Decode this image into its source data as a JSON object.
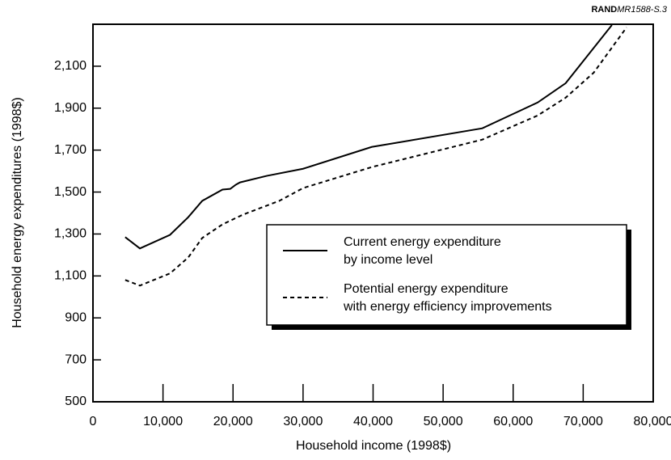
{
  "chart_data": {
    "type": "line",
    "source": "RAND",
    "report": "MR1588-S.3",
    "xlabel": "Household income (1998$)",
    "ylabel": "Household energy expenditures (1998$)",
    "xlim": [
      0,
      80000
    ],
    "ylim": [
      500,
      2300
    ],
    "xticks": [
      0,
      {
        "value": 10000,
        "label": "10,000"
      },
      {
        "value": 20000,
        "label": "20,000"
      },
      {
        "value": 30000,
        "label": "30,000"
      },
      {
        "value": 40000,
        "label": "40,000"
      },
      {
        "value": 50000,
        "label": "50,000"
      },
      {
        "value": 60000,
        "label": "60,000"
      },
      {
        "value": 70000,
        "label": "70,000"
      },
      {
        "value": 80000,
        "label": "80,000"
      }
    ],
    "yticks": [
      500,
      700,
      900,
      {
        "value": 1100,
        "label": "1,100"
      },
      {
        "value": 1300,
        "label": "1,300"
      },
      {
        "value": 1500,
        "label": "1,500"
      },
      {
        "value": 1700,
        "label": "1,700"
      },
      {
        "value": 1900,
        "label": "1,900"
      },
      {
        "value": 2100,
        "label": "2,100"
      }
    ],
    "series": [
      {
        "name": [
          "Current energy expenditure",
          "by income level"
        ],
        "color": "#000000",
        "dash": false,
        "x": [
          4600,
          6700,
          11000,
          13600,
          15600,
          18500,
          19600,
          20400,
          21000,
          24800,
          30000,
          39800,
          55600,
          63500,
          67500,
          74100
        ],
        "values": [
          1285,
          1231,
          1296,
          1380,
          1458,
          1512,
          1515,
          1535,
          1546,
          1577,
          1611,
          1715,
          1804,
          1927,
          2019,
          2296
        ]
      },
      {
        "name": [
          "Potential energy expenditure",
          "with energy efficiency improvements"
        ],
        "color": "#000000",
        "dash": true,
        "x": [
          4600,
          6700,
          11000,
          13600,
          15600,
          18500,
          21400,
          26600,
          30000,
          39800,
          55600,
          63500,
          67500,
          71500,
          76200
        ],
        "values": [
          1081,
          1054,
          1112,
          1188,
          1281,
          1346,
          1392,
          1458,
          1519,
          1619,
          1750,
          1865,
          1950,
          2069,
          2285
        ]
      }
    ]
  }
}
